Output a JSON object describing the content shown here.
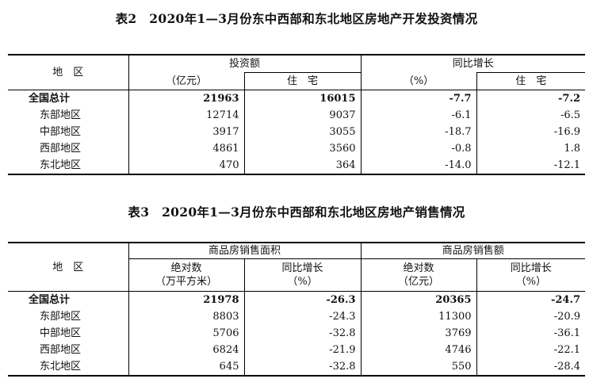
{
  "table2": {
    "title": "表2　2020年1—3月份东中西部和东北地区房地产开发投资情况",
    "header": {
      "region": "地　区",
      "investment": "投资额",
      "investment_unit": "（亿元）",
      "residential": "住　宅",
      "yoy": "同比增长",
      "yoy_unit": "（%）",
      "yoy_residential": "住　宅"
    },
    "rows": [
      {
        "region": "全国总计",
        "investment": "21963",
        "residential": "16015",
        "yoy": "-7.7",
        "yoy_residential": "-7.2"
      },
      {
        "region": "东部地区",
        "investment": "12714",
        "residential": "9037",
        "yoy": "-6.1",
        "yoy_residential": "-6.5"
      },
      {
        "region": "中部地区",
        "investment": "3917",
        "residential": "3055",
        "yoy": "-18.7",
        "yoy_residential": "-16.9"
      },
      {
        "region": "西部地区",
        "investment": "4861",
        "residential": "3560",
        "yoy": "-0.8",
        "yoy_residential": "1.8"
      },
      {
        "region": "东北地区",
        "investment": "470",
        "residential": "364",
        "yoy": "-14.0",
        "yoy_residential": "-12.1"
      }
    ]
  },
  "table3": {
    "title": "表3　2020年1—3月份东中西部和东北地区房地产销售情况",
    "header": {
      "region": "地　区",
      "area_group": "商品房销售面积",
      "amount_group": "商品房销售额",
      "abs": "绝对数",
      "area_unit": "（万平方米）",
      "yoy": "同比增长",
      "pct_unit": "（%）",
      "amount_unit": "（亿元）"
    },
    "rows": [
      {
        "region": "全国总计",
        "area": "21978",
        "area_yoy": "-26.3",
        "amount": "20365",
        "amount_yoy": "-24.7"
      },
      {
        "region": "东部地区",
        "area": "8803",
        "area_yoy": "-24.3",
        "amount": "11300",
        "amount_yoy": "-20.9"
      },
      {
        "region": "中部地区",
        "area": "5706",
        "area_yoy": "-32.8",
        "amount": "3769",
        "amount_yoy": "-36.1"
      },
      {
        "region": "西部地区",
        "area": "6824",
        "area_yoy": "-21.9",
        "amount": "4746",
        "amount_yoy": "-22.1"
      },
      {
        "region": "东北地区",
        "area": "645",
        "area_yoy": "-32.8",
        "amount": "550",
        "amount_yoy": "-28.4"
      }
    ]
  }
}
